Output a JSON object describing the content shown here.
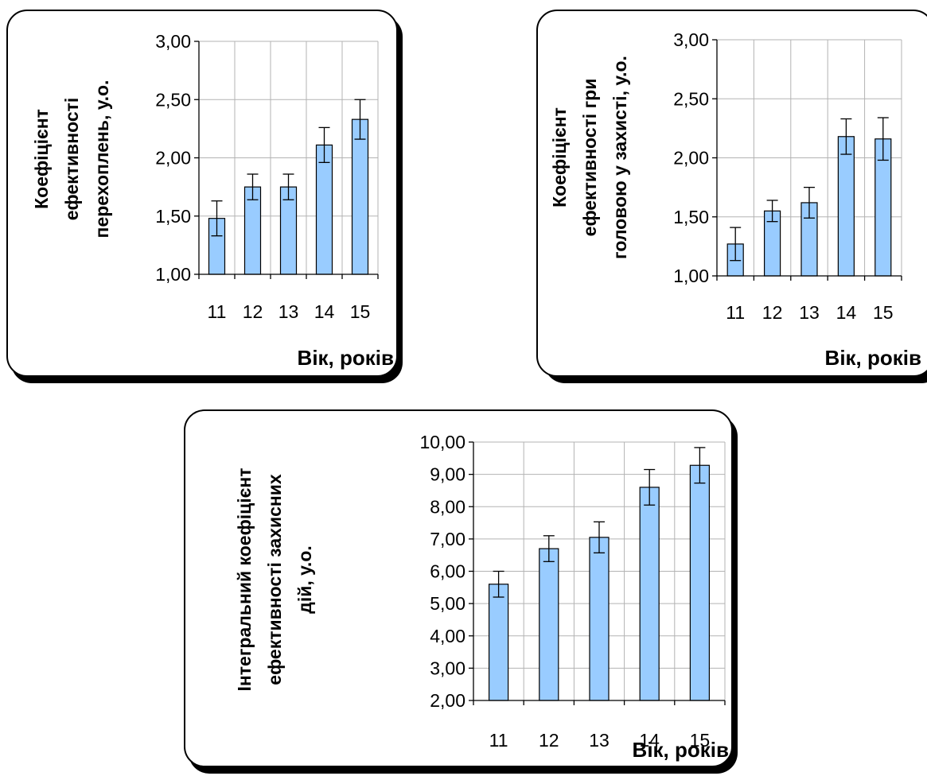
{
  "chart_data": [
    {
      "type": "bar",
      "categories": [
        "11",
        "12",
        "13",
        "14",
        "15"
      ],
      "values": [
        1.48,
        1.75,
        1.75,
        2.11,
        2.33
      ],
      "errors": [
        0.15,
        0.11,
        0.11,
        0.15,
        0.17
      ],
      "ylabel_lines": [
        "Коефіцієнт",
        "ефективності",
        "перехоплень, у.о."
      ],
      "xlabel": "Вік, років",
      "ylim": [
        1.0,
        3.0
      ],
      "ytick_values": [
        1.0,
        1.5,
        2.0,
        2.5,
        3.0
      ],
      "ytick_labels": [
        "1,00",
        "1,50",
        "2,00",
        "2,50",
        "3,00"
      ],
      "bar_color": "#99ccff",
      "grid": true
    },
    {
      "type": "bar",
      "categories": [
        "11",
        "12",
        "13",
        "14",
        "15"
      ],
      "values": [
        1.27,
        1.55,
        1.62,
        2.18,
        2.16
      ],
      "errors": [
        0.14,
        0.09,
        0.13,
        0.15,
        0.18
      ],
      "ylabel_lines": [
        "Коефіцієнт",
        "ефективності гри",
        "головою у захисті, у.о."
      ],
      "xlabel": "Вік, років",
      "ylim": [
        1.0,
        3.0
      ],
      "ytick_values": [
        1.0,
        1.5,
        2.0,
        2.5,
        3.0
      ],
      "ytick_labels": [
        "1,00",
        "1,50",
        "2,00",
        "2,50",
        "3,00"
      ],
      "bar_color": "#99ccff",
      "grid": true
    },
    {
      "type": "bar",
      "categories": [
        "11",
        "12",
        "13",
        "14",
        "15"
      ],
      "values": [
        5.6,
        6.7,
        7.05,
        8.6,
        9.28
      ],
      "errors": [
        0.4,
        0.4,
        0.48,
        0.55,
        0.55
      ],
      "ylabel_lines": [
        "Інтегральний коефіцієнт",
        "ефективності захисних",
        "дій, у.о."
      ],
      "xlabel": "Вік, років",
      "ylim": [
        2.0,
        10.0
      ],
      "ytick_values": [
        2,
        3,
        4,
        5,
        6,
        7,
        8,
        9,
        10
      ],
      "ytick_labels": [
        "2,00",
        "3,00",
        "4,00",
        "5,00",
        "6,00",
        "7,00",
        "8,00",
        "9,00",
        "10,00"
      ],
      "bar_color": "#99ccff",
      "grid": true
    }
  ]
}
